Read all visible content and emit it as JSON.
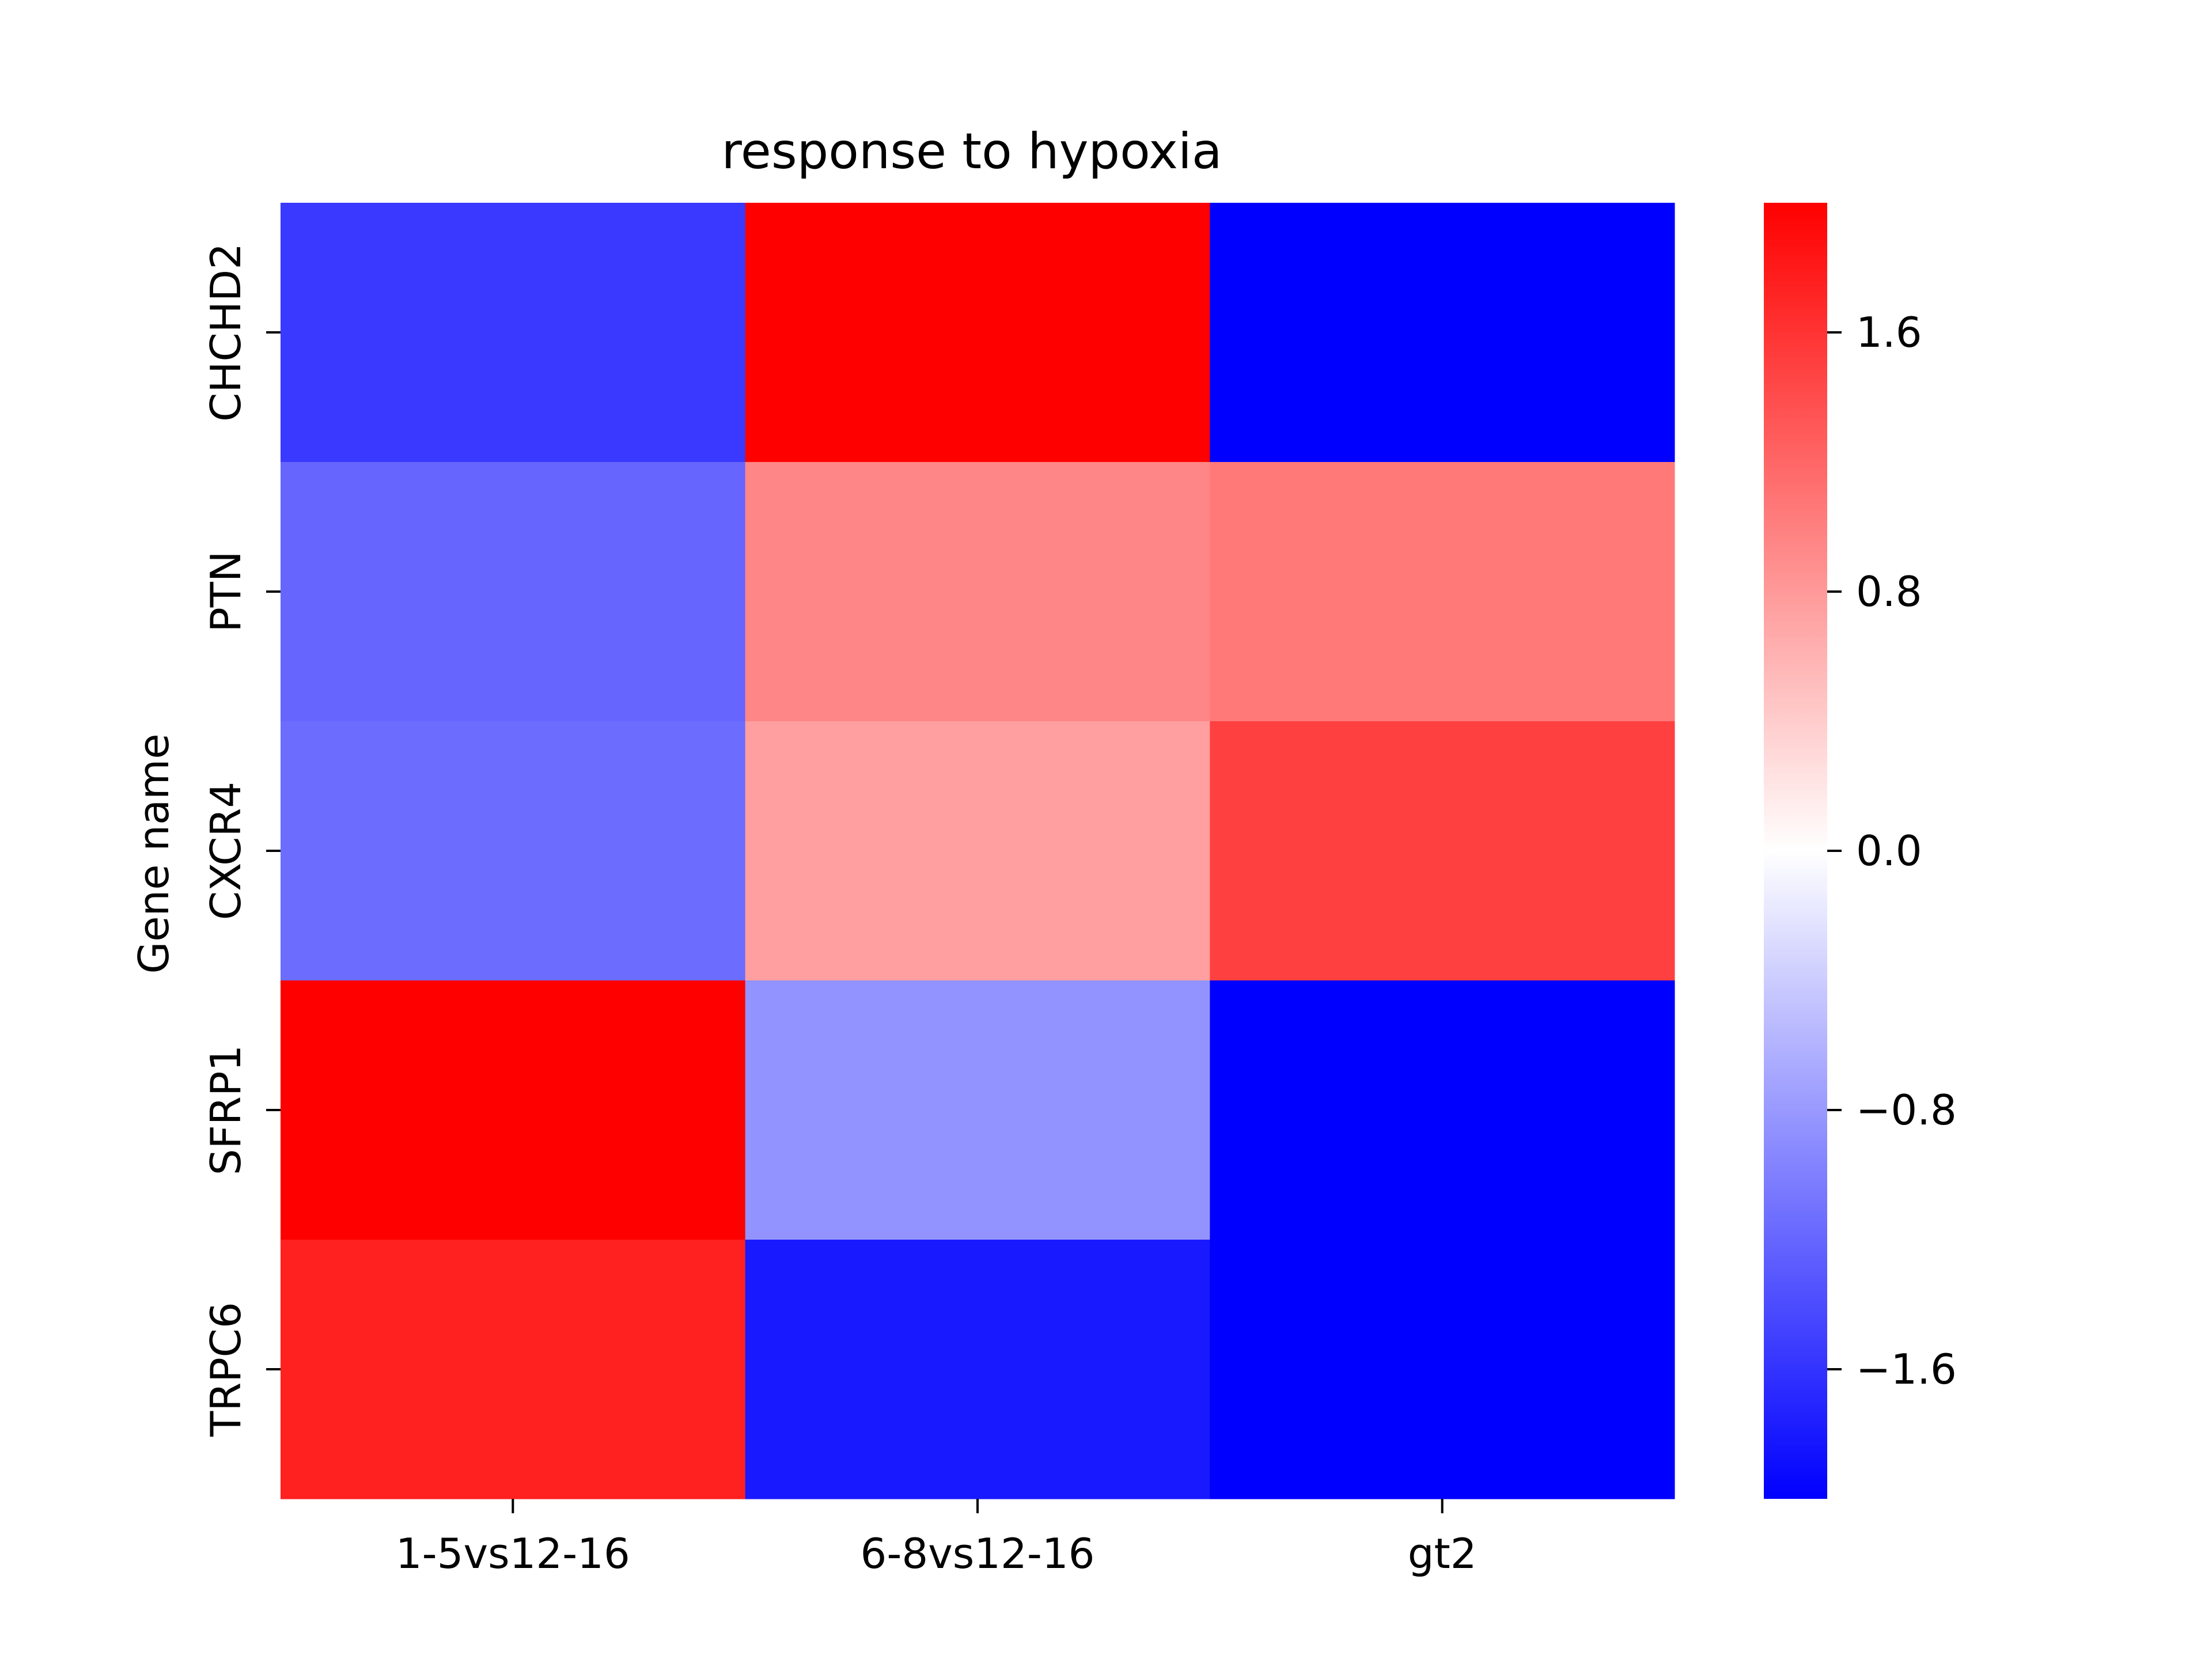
{
  "chart_data": {
    "type": "heatmap",
    "title": "response to hypoxia",
    "xlabel": "",
    "ylabel": "Gene name",
    "x_categories": [
      "1-5vs12-16",
      "6-8vs12-16",
      "gt2"
    ],
    "y_categories": [
      "CHCHD2",
      "PTN",
      "CXCR4",
      "SFRP1",
      "TRPC6"
    ],
    "values": [
      [
        -1.55,
        2.0,
        -2.0
      ],
      [
        -1.2,
        0.95,
        1.05
      ],
      [
        -1.15,
        0.75,
        1.5
      ],
      [
        2.0,
        -0.85,
        -2.0
      ],
      [
        1.75,
        -1.8,
        -2.0
      ]
    ],
    "colormap": {
      "name": "bwr",
      "min": -2.0,
      "max": 2.0,
      "low_color": "#0000ff",
      "mid_color": "#ffffff",
      "high_color": "#ff0000"
    },
    "colorbar": {
      "ticks": [
        1.6,
        0.8,
        0.0,
        -0.8,
        -1.6
      ],
      "tick_labels": [
        "1.6",
        "0.8",
        "0.0",
        "−0.8",
        "−1.6"
      ]
    }
  }
}
